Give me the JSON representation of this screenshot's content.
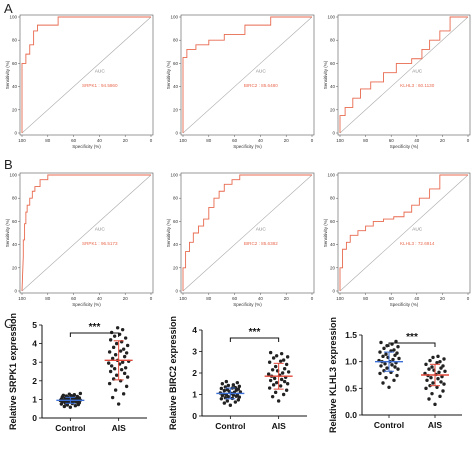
{
  "panels": {
    "A": "A",
    "B": "B",
    "C": "C"
  },
  "chart_data": [
    {
      "type": "line",
      "panel": "A",
      "id": "A1",
      "xlabel": "Specificity (%)",
      "ylabel": "Sensitivity (%)",
      "xlim": [
        100,
        0
      ],
      "ylim": [
        0,
        100
      ],
      "x_ticks": [
        "100",
        "80",
        "60",
        "40",
        "20",
        "0"
      ],
      "y_ticks": [
        "0",
        "20",
        "40",
        "60",
        "80",
        "100"
      ],
      "auc_label": "AUC",
      "auc_value": "SRPK1 : 94.5860",
      "series": [
        {
          "x": [
            100,
            100,
            97,
            97,
            94,
            94,
            91,
            91,
            88,
            88,
            72,
            72,
            0
          ],
          "y": [
            0,
            60,
            60,
            68,
            68,
            76,
            76,
            88,
            88,
            93,
            93,
            100,
            100
          ]
        }
      ]
    },
    {
      "type": "line",
      "panel": "A",
      "id": "A2",
      "xlabel": "Specificity (%)",
      "ylabel": "Sensitivity (%)",
      "xlim": [
        100,
        0
      ],
      "ylim": [
        0,
        100
      ],
      "x_ticks": [
        "100",
        "80",
        "60",
        "40",
        "20",
        "0"
      ],
      "y_ticks": [
        "0",
        "20",
        "40",
        "60",
        "80",
        "100"
      ],
      "auc_label": "AUC",
      "auc_value": "BIRC2 : 85.6480",
      "series": [
        {
          "x": [
            100,
            100,
            97,
            97,
            90,
            90,
            80,
            80,
            68,
            68,
            52,
            52,
            32,
            32,
            0
          ],
          "y": [
            0,
            65,
            65,
            72,
            72,
            76,
            76,
            80,
            80,
            85,
            85,
            93,
            93,
            100,
            100
          ]
        }
      ]
    },
    {
      "type": "line",
      "panel": "A",
      "id": "A3",
      "xlabel": "Specificity (%)",
      "ylabel": "Sensitivity (%)",
      "xlim": [
        100,
        0
      ],
      "ylim": [
        0,
        100
      ],
      "x_ticks": [
        "100",
        "80",
        "60",
        "40",
        "20",
        "0"
      ],
      "y_ticks": [
        "0",
        "20",
        "40",
        "60",
        "80",
        "100"
      ],
      "auc_label": "AUC",
      "auc_value": "KLHL3 : 60.1130",
      "series": [
        {
          "x": [
            100,
            100,
            96,
            96,
            90,
            90,
            84,
            84,
            76,
            76,
            66,
            66,
            56,
            56,
            44,
            44,
            36,
            36,
            30,
            30,
            22,
            22,
            14,
            14,
            0
          ],
          "y": [
            0,
            15,
            15,
            22,
            22,
            30,
            30,
            38,
            38,
            44,
            44,
            52,
            52,
            60,
            60,
            64,
            64,
            72,
            72,
            80,
            80,
            88,
            88,
            100,
            100
          ]
        }
      ]
    },
    {
      "type": "line",
      "panel": "B",
      "id": "B1",
      "xlabel": "Specificity (%)",
      "ylabel": "Sensitivity (%)",
      "xlim": [
        100,
        0
      ],
      "ylim": [
        0,
        100
      ],
      "x_ticks": [
        "100",
        "80",
        "60",
        "40",
        "20",
        "0"
      ],
      "y_ticks": [
        "0",
        "20",
        "40",
        "60",
        "80",
        "100"
      ],
      "auc_label": "AUC",
      "auc_value": "SRPK1 : 96.5173",
      "series": [
        {
          "x": [
            100,
            99,
            99,
            98,
            98,
            97,
            97,
            96,
            96,
            94,
            94,
            92,
            92,
            90,
            90,
            86,
            86,
            80,
            80,
            0
          ],
          "y": [
            0,
            30,
            44,
            44,
            58,
            58,
            68,
            68,
            74,
            74,
            80,
            80,
            86,
            86,
            90,
            90,
            96,
            96,
            100,
            100
          ]
        }
      ]
    },
    {
      "type": "line",
      "panel": "B",
      "id": "B2",
      "xlabel": "Specificity (%)",
      "ylabel": "Sensitivity (%)",
      "xlim": [
        100,
        0
      ],
      "ylim": [
        0,
        100
      ],
      "x_ticks": [
        "100",
        "80",
        "60",
        "40",
        "20",
        "0"
      ],
      "y_ticks": [
        "0",
        "20",
        "40",
        "60",
        "80",
        "100"
      ],
      "auc_label": "AUC",
      "auc_value": "BIRC2 : 85.6382",
      "series": [
        {
          "x": [
            100,
            100,
            98,
            98,
            95,
            95,
            92,
            92,
            88,
            88,
            84,
            84,
            80,
            80,
            76,
            76,
            72,
            72,
            68,
            68,
            62,
            62,
            56,
            56,
            0
          ],
          "y": [
            0,
            20,
            20,
            34,
            34,
            42,
            42,
            50,
            50,
            56,
            56,
            62,
            62,
            72,
            72,
            80,
            80,
            86,
            86,
            92,
            92,
            96,
            96,
            100,
            100
          ]
        }
      ]
    },
    {
      "type": "line",
      "panel": "B",
      "id": "B3",
      "xlabel": "Specificity (%)",
      "ylabel": "Sensitivity (%)",
      "xlim": [
        100,
        0
      ],
      "ylim": [
        0,
        100
      ],
      "x_ticks": [
        "100",
        "80",
        "60",
        "40",
        "20",
        "0"
      ],
      "y_ticks": [
        "0",
        "20",
        "40",
        "60",
        "80",
        "100"
      ],
      "auc_label": "AUC",
      "auc_value": "KLHL3 : 72.6914",
      "series": [
        {
          "x": [
            100,
            100,
            98,
            98,
            95,
            95,
            92,
            92,
            86,
            86,
            80,
            80,
            74,
            74,
            66,
            66,
            58,
            58,
            50,
            50,
            44,
            44,
            38,
            38,
            30,
            30,
            22,
            22,
            0
          ],
          "y": [
            0,
            20,
            20,
            36,
            36,
            42,
            42,
            48,
            48,
            52,
            52,
            56,
            56,
            60,
            60,
            62,
            62,
            64,
            64,
            68,
            68,
            74,
            74,
            80,
            80,
            88,
            88,
            100,
            100
          ]
        }
      ]
    },
    {
      "type": "scatter",
      "panel": "C",
      "id": "C1",
      "ylabel": "Relative SRPK1 expression",
      "categories": [
        "Control",
        "AIS"
      ],
      "ylim": [
        0,
        5
      ],
      "y_ticks": [
        "0",
        "1",
        "2",
        "3",
        "4",
        "5"
      ],
      "significance": "***",
      "groups": [
        {
          "name": "Control",
          "mean": 0.95,
          "sd": 0.16,
          "values": [
            0.58,
            0.62,
            0.66,
            0.7,
            0.72,
            0.75,
            0.78,
            0.8,
            0.82,
            0.84,
            0.86,
            0.87,
            0.88,
            0.9,
            0.9,
            0.92,
            0.93,
            0.94,
            0.95,
            0.96,
            0.97,
            0.98,
            0.99,
            1.0,
            1.0,
            1.02,
            1.03,
            1.05,
            1.06,
            1.08,
            1.1,
            1.12,
            1.14,
            1.16,
            1.18,
            1.2,
            1.22,
            1.25,
            1.28,
            1.32
          ]
        },
        {
          "name": "AIS",
          "mean": 3.1,
          "sd": 1.05,
          "values": [
            0.75,
            1.1,
            1.3,
            1.5,
            1.7,
            1.85,
            2.0,
            2.1,
            2.2,
            2.3,
            2.4,
            2.5,
            2.6,
            2.65,
            2.7,
            2.8,
            2.9,
            2.95,
            3.0,
            3.05,
            3.1,
            3.2,
            3.3,
            3.4,
            3.5,
            3.55,
            3.6,
            3.7,
            3.8,
            3.9,
            4.0,
            4.1,
            4.2,
            4.3,
            4.4,
            4.5,
            4.6,
            4.75,
            4.85
          ]
        }
      ]
    },
    {
      "type": "scatter",
      "panel": "C",
      "id": "C2",
      "ylabel": "Relative BIRC2 expression",
      "categories": [
        "Control",
        "AIS"
      ],
      "ylim": [
        0,
        4
      ],
      "y_ticks": [
        "0",
        "1",
        "2",
        "3",
        "4"
      ],
      "significance": "***",
      "groups": [
        {
          "name": "Control",
          "mean": 1.05,
          "sd": 0.25,
          "values": [
            0.5,
            0.6,
            0.65,
            0.7,
            0.75,
            0.8,
            0.82,
            0.85,
            0.88,
            0.9,
            0.92,
            0.95,
            0.97,
            1.0,
            1.0,
            1.02,
            1.05,
            1.07,
            1.1,
            1.12,
            1.15,
            1.18,
            1.2,
            1.22,
            1.25,
            1.28,
            1.3,
            1.32,
            1.35,
            1.38,
            1.42,
            1.45,
            1.5,
            1.55,
            1.6
          ]
        },
        {
          "name": "AIS",
          "mean": 1.85,
          "sd": 0.6,
          "values": [
            0.7,
            0.9,
            1.0,
            1.1,
            1.2,
            1.3,
            1.4,
            1.45,
            1.5,
            1.55,
            1.6,
            1.65,
            1.7,
            1.75,
            1.8,
            1.85,
            1.9,
            1.95,
            2.0,
            2.05,
            2.1,
            2.15,
            2.2,
            2.3,
            2.4,
            2.5,
            2.55,
            2.6,
            2.7,
            2.75,
            2.8,
            2.9,
            2.95
          ]
        }
      ]
    },
    {
      "type": "scatter",
      "panel": "C",
      "id": "C3",
      "ylabel": "Relative KLHL3 expression",
      "categories": [
        "Control",
        "AIS"
      ],
      "ylim": [
        0,
        1.5
      ],
      "y_ticks": [
        "0.0",
        "0.5",
        "1.0",
        "1.5"
      ],
      "significance": "***",
      "groups": [
        {
          "name": "Control",
          "mean": 1.0,
          "sd": 0.18,
          "values": [
            0.52,
            0.6,
            0.65,
            0.7,
            0.74,
            0.78,
            0.8,
            0.83,
            0.86,
            0.88,
            0.9,
            0.92,
            0.94,
            0.96,
            0.98,
            1.0,
            1.0,
            1.02,
            1.04,
            1.06,
            1.08,
            1.1,
            1.12,
            1.14,
            1.16,
            1.18,
            1.2,
            1.22,
            1.25,
            1.28,
            1.3,
            1.33,
            1.36,
            1.38
          ]
        },
        {
          "name": "AIS",
          "mean": 0.75,
          "sd": 0.2,
          "values": [
            0.2,
            0.3,
            0.35,
            0.4,
            0.45,
            0.5,
            0.52,
            0.55,
            0.58,
            0.6,
            0.62,
            0.65,
            0.68,
            0.7,
            0.72,
            0.74,
            0.76,
            0.78,
            0.8,
            0.82,
            0.84,
            0.86,
            0.88,
            0.9,
            0.92,
            0.95,
            0.98,
            1.0,
            1.02,
            1.05,
            1.08,
            1.1
          ]
        }
      ]
    }
  ]
}
